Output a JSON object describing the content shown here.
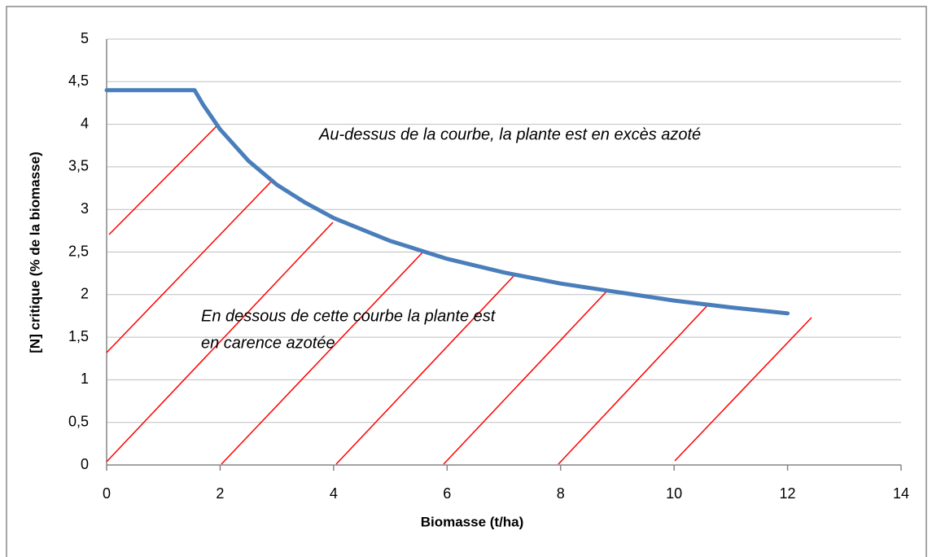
{
  "chart_data": {
    "type": "line",
    "xlabel": "Biomasse (t/ha)",
    "ylabel": "[N] critique (% de la biomasse)",
    "x": [
      0,
      1.55,
      1.7,
      2,
      2.5,
      3,
      3.5,
      4,
      5,
      6,
      7,
      8,
      9,
      10,
      11,
      12
    ],
    "values": [
      4.4,
      4.4,
      4.23,
      3.94,
      3.57,
      3.29,
      3.08,
      2.9,
      2.63,
      2.42,
      2.26,
      2.13,
      2.03,
      1.93,
      1.85,
      1.78
    ],
    "color": "#4a7ebb",
    "xlim": [
      0,
      14
    ],
    "xticks": [
      0,
      2,
      4,
      6,
      8,
      10,
      12,
      14
    ],
    "ylim": [
      0,
      5
    ],
    "yticks": [
      0,
      {
        "value": 0.5,
        "label": "0,5"
      },
      1,
      {
        "value": 1.5,
        "label": "1,5"
      },
      2,
      {
        "value": 2.5,
        "label": "2,5"
      },
      3,
      {
        "value": 3.5,
        "label": "3,5"
      },
      4,
      {
        "value": 4.5,
        "label": "4,5"
      },
      5
    ],
    "grid": true,
    "annotations": [
      {
        "text": "Au-dessus de la courbe, la plante est en excès azoté",
        "color": "#000000"
      },
      {
        "text": "En dessous de cette courbe la plante est",
        "color": "#ff0000"
      },
      {
        "text": "en carence azotée",
        "color": "#ff0000"
      }
    ]
  }
}
